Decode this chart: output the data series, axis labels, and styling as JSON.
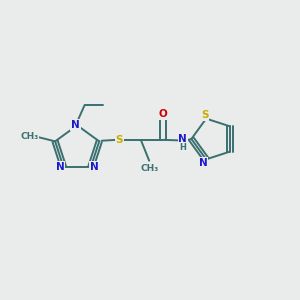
{
  "bg_color": "#eaeceb",
  "atom_colors": {
    "C": "#3a7070",
    "N": "#1a1acc",
    "S": "#ccaa00",
    "O": "#cc0000",
    "H": "#3a7070"
  },
  "bond_color": "#3a7070",
  "lw": 1.4
}
